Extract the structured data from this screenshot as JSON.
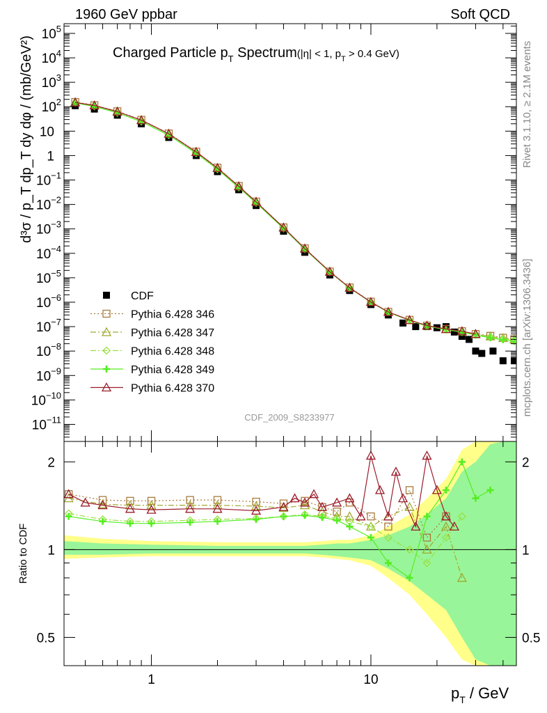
{
  "header": {
    "left": "1960 GeV ppbar",
    "right": "Soft QCD"
  },
  "side_labels": {
    "rivet": "Rivet 3.1.10, ≥ 2.1M events",
    "mcplots": "mcplots.cern.ch [arXiv:1306.3436]"
  },
  "watermark": "CDF_2009_S8233977",
  "chart_data": [
    {
      "type": "scatter",
      "panel": "main",
      "title": "Charged Particle p_T Spectrum (|η| < 1, p_T > 0.4 GeV)",
      "title_parts": {
        "main": "Charged Particle p",
        "sub": "T",
        "after": " Spectrum",
        "cut": "(|η| < 1, p",
        "cut_sub": "T",
        "cut_after": " > 0.4 GeV)"
      },
      "ylabel": "d³σ / p_T dp_T dy dφ / (mb/GeV²)",
      "x_scale": "log",
      "y_scale": "log",
      "xlim": [
        0.4,
        46
      ],
      "ylim": [
        2e-12,
        250000.0
      ],
      "y_ticks": [
        {
          "v": 100000.0,
          "b": "10",
          "e": "5"
        },
        {
          "v": 10000.0,
          "b": "10",
          "e": "4"
        },
        {
          "v": 1000.0,
          "b": "10",
          "e": "3"
        },
        {
          "v": 100.0,
          "b": "10",
          "e": "2"
        },
        {
          "v": 10,
          "b": "10",
          "e": ""
        },
        {
          "v": 1,
          "b": "1",
          "e": ""
        },
        {
          "v": 0.1,
          "b": "10",
          "e": "−1"
        },
        {
          "v": 0.01,
          "b": "10",
          "e": "−2"
        },
        {
          "v": 0.001,
          "b": "10",
          "e": "−3"
        },
        {
          "v": 0.0001,
          "b": "10",
          "e": "−4"
        },
        {
          "v": 1e-05,
          "b": "10",
          "e": "−5"
        },
        {
          "v": 1e-06,
          "b": "10",
          "e": "−6"
        },
        {
          "v": 1e-07,
          "b": "10",
          "e": "−7"
        },
        {
          "v": 1e-08,
          "b": "10",
          "e": "−8"
        },
        {
          "v": 1e-09,
          "b": "10",
          "e": "−9"
        },
        {
          "v": 1e-10,
          "b": "10",
          "e": "−10"
        },
        {
          "v": 1e-11,
          "b": "10",
          "e": "−11"
        }
      ],
      "legend_position": "lower-left",
      "series": [
        {
          "name": "CDF",
          "color": "#000000",
          "marker": "square",
          "style": "none",
          "x": [
            0.45,
            0.55,
            0.7,
            0.9,
            1.2,
            1.6,
            2.0,
            2.5,
            3.0,
            4.0,
            5.0,
            6.5,
            8.0,
            10.0,
            12.0,
            14.0,
            16.0,
            18.0,
            20.0,
            22.0,
            24.0,
            26.0,
            28.0,
            30.0,
            32.0,
            36.0,
            40.0,
            45.0
          ],
          "y": [
            110,
            80,
            45,
            20,
            5.5,
            1.0,
            0.22,
            0.04,
            0.009,
            0.0008,
            0.00011,
            1.3e-05,
            3e-06,
            8e-07,
            3e-07,
            1.4e-07,
            1e-07,
            1e-07,
            9e-08,
            1e-07,
            6e-08,
            4e-08,
            3e-08,
            1e-08,
            8e-09,
            1e-08,
            4e-09,
            4e-09
          ]
        },
        {
          "name": "Pythia 6.428 346",
          "color": "#a87a3c",
          "marker": "open-square",
          "style": "dotted",
          "x": [
            0.45,
            0.55,
            0.7,
            0.9,
            1.2,
            1.6,
            2.0,
            2.5,
            3.0,
            4.0,
            5.0,
            6.5,
            8.0,
            10.0,
            12.0,
            15.0,
            18.0,
            22.0,
            26.0,
            30.0,
            35.0,
            40.0,
            45.0
          ],
          "y": [
            155,
            115,
            65,
            29,
            8.0,
            1.45,
            0.32,
            0.057,
            0.0131,
            0.00115,
            0.00016,
            1.8e-05,
            4e-06,
            1.05e-06,
            4e-07,
            1.9e-07,
            1.1e-07,
            8e-08,
            6.5e-08,
            5e-08,
            4.2e-08,
            3.5e-08,
            3e-08
          ]
        },
        {
          "name": "Pythia 6.428 347",
          "color": "#a0a830",
          "marker": "open-triangle",
          "style": "dashdot",
          "x": [
            0.45,
            0.55,
            0.7,
            0.9,
            1.2,
            1.6,
            2.0,
            2.5,
            3.0,
            4.0,
            5.0,
            6.5,
            8.0,
            10.0,
            12.0,
            15.0,
            18.0,
            22.0,
            26.0,
            30.0,
            35.0,
            40.0,
            45.0
          ],
          "y": [
            152,
            113,
            64,
            28.5,
            7.9,
            1.43,
            0.315,
            0.056,
            0.013,
            0.00114,
            0.000158,
            1.78e-05,
            3.9e-06,
            1.02e-06,
            4e-07,
            1.85e-07,
            1.08e-07,
            7.8e-08,
            6.3e-08,
            4.8e-08,
            4e-08,
            3.4e-08,
            3e-08
          ]
        },
        {
          "name": "Pythia 6.428 348",
          "color": "#99e040",
          "marker": "open-diamond",
          "style": "dashdot",
          "x": [
            0.45,
            0.55,
            0.7,
            0.9,
            1.2,
            1.6,
            2.0,
            2.5,
            3.0,
            4.0,
            5.0,
            6.5,
            8.0,
            10.0,
            12.0,
            15.0,
            18.0,
            22.0,
            26.0,
            30.0,
            35.0,
            40.0,
            45.0
          ],
          "y": [
            145,
            104,
            57,
            25,
            6.9,
            1.26,
            0.28,
            0.05,
            0.0118,
            0.00105,
            0.000148,
            1.7e-05,
            3.8e-06,
            1e-06,
            3.9e-07,
            1.8e-07,
            1.05e-07,
            7.5e-08,
            6e-08,
            4.7e-08,
            3.8e-08,
            3.2e-08,
            2.8e-08
          ]
        },
        {
          "name": "Pythia 6.428 349",
          "color": "#55ee22",
          "marker": "plus-cross",
          "style": "solid",
          "x": [
            0.45,
            0.55,
            0.7,
            0.9,
            1.2,
            1.6,
            2.0,
            2.5,
            3.0,
            4.0,
            5.0,
            6.5,
            8.0,
            10.0,
            12.0,
            15.0,
            18.0,
            22.0,
            26.0,
            30.0,
            35.0,
            40.0,
            45.0
          ],
          "y": [
            143,
            102,
            56,
            24.5,
            6.8,
            1.24,
            0.275,
            0.049,
            0.0116,
            0.00104,
            0.000147,
            1.7e-05,
            3.8e-06,
            1e-06,
            3.9e-07,
            1.8e-07,
            1.05e-07,
            7.5e-08,
            6e-08,
            4.5e-08,
            3.5e-08,
            2.9e-08,
            2.5e-08
          ]
        },
        {
          "name": "Pythia 6.428 370",
          "color": "#9b1b2a",
          "marker": "open-triangle",
          "style": "solid",
          "x": [
            0.45,
            0.55,
            0.7,
            0.9,
            1.2,
            1.6,
            2.0,
            2.5,
            3.0,
            4.0,
            5.0,
            6.5,
            8.0,
            10.0,
            12.0,
            15.0,
            18.0,
            22.0,
            26.0,
            30.0
          ],
          "y": [
            150,
            112,
            63,
            28,
            7.8,
            1.4,
            0.31,
            0.055,
            0.0128,
            0.00113,
            0.000156,
            1.76e-05,
            3.9e-06,
            1.02e-06,
            4e-07,
            1.85e-07,
            1.1e-07,
            8e-08,
            6.5e-08,
            5e-08
          ]
        }
      ]
    },
    {
      "type": "line",
      "panel": "ratio",
      "ylabel": "Ratio to CDF",
      "xlabel": "p_T / GeV",
      "xlabel_parts": {
        "main": "p",
        "sub": "T",
        "after": " / GeV"
      },
      "x_scale": "log",
      "y_scale": "log",
      "xlim": [
        0.4,
        46
      ],
      "ylim": [
        0.4,
        2.35
      ],
      "x_ticks": [
        {
          "v": 1,
          "label": "1"
        },
        {
          "v": 10,
          "label": "10"
        }
      ],
      "y_ticks": [
        {
          "v": 2,
          "label": "2"
        },
        {
          "v": 1,
          "label": "1"
        },
        {
          "v": 0.5,
          "label": "0.5"
        }
      ],
      "reference_line": 1,
      "uncertainty_bands": [
        {
          "name": "yellow",
          "color": "#ffff8a",
          "x": [
            0.4,
            0.6,
            1.0,
            2.0,
            3.0,
            4.0,
            5.0,
            6.0,
            7.0,
            8.0,
            10.0,
            12.0,
            15.0,
            18.0,
            22.0,
            26.0,
            30.0,
            35.0,
            40.0,
            46.0
          ],
          "lo": [
            0.93,
            0.94,
            0.95,
            0.95,
            0.95,
            0.95,
            0.95,
            0.94,
            0.93,
            0.92,
            0.88,
            0.8,
            0.7,
            0.6,
            0.5,
            0.42,
            0.4,
            0.4,
            0.4,
            0.4
          ],
          "hi": [
            1.12,
            1.09,
            1.07,
            1.06,
            1.06,
            1.06,
            1.06,
            1.07,
            1.08,
            1.08,
            1.12,
            1.2,
            1.32,
            1.5,
            1.75,
            2.2,
            2.35,
            2.35,
            2.35,
            2.35
          ]
        },
        {
          "name": "green",
          "color": "#99f599",
          "x": [
            0.4,
            0.6,
            1.0,
            2.0,
            3.0,
            4.0,
            5.0,
            6.0,
            7.0,
            8.0,
            10.0,
            12.0,
            15.0,
            18.0,
            22.0,
            26.0,
            30.0,
            35.0,
            40.0,
            46.0
          ],
          "lo": [
            0.96,
            0.96,
            0.97,
            0.97,
            0.97,
            0.97,
            0.97,
            0.96,
            0.95,
            0.94,
            0.92,
            0.86,
            0.78,
            0.7,
            0.62,
            0.5,
            0.42,
            0.4,
            0.4,
            0.4
          ],
          "hi": [
            1.07,
            1.05,
            1.04,
            1.03,
            1.03,
            1.03,
            1.03,
            1.04,
            1.05,
            1.05,
            1.08,
            1.12,
            1.2,
            1.32,
            1.5,
            1.85,
            2.0,
            2.3,
            2.35,
            2.35
          ]
        }
      ],
      "series": [
        {
          "name": "Pythia 6.428 346",
          "color": "#a87a3c",
          "x": [
            0.42,
            0.6,
            0.8,
            1.0,
            1.5,
            2.0,
            3.0,
            4.0,
            5.0,
            6.0,
            7.0,
            8.0,
            10.0,
            12.0,
            15.0,
            18.0,
            22.0
          ],
          "y": [
            1.55,
            1.48,
            1.47,
            1.47,
            1.48,
            1.48,
            1.46,
            1.44,
            1.47,
            1.4,
            1.35,
            1.45,
            1.3,
            1.2,
            1.6,
            1.1,
            1.3
          ]
        },
        {
          "name": "Pythia 6.428 347",
          "color": "#a0a830",
          "x": [
            0.42,
            0.6,
            0.8,
            1.0,
            1.5,
            2.0,
            3.0,
            4.0,
            5.0,
            6.0,
            7.0,
            8.0,
            10.0,
            12.0,
            15.0,
            18.0,
            22.0,
            26.0
          ],
          "y": [
            1.5,
            1.43,
            1.42,
            1.42,
            1.42,
            1.42,
            1.41,
            1.39,
            1.42,
            1.35,
            1.3,
            1.3,
            1.2,
            1.3,
            1.4,
            1.0,
            1.2,
            0.8
          ]
        },
        {
          "name": "Pythia 6.428 348",
          "color": "#99e040",
          "x": [
            0.42,
            0.6,
            0.8,
            1.0,
            1.5,
            2.0,
            3.0,
            4.0,
            5.0,
            6.0,
            7.0,
            8.0,
            10.0,
            12.0,
            15.0,
            18.0,
            22.0,
            26.0
          ],
          "y": [
            1.33,
            1.27,
            1.25,
            1.25,
            1.26,
            1.27,
            1.28,
            1.3,
            1.32,
            1.3,
            1.28,
            1.25,
            1.2,
            1.1,
            1.0,
            0.9,
            1.1,
            1.3
          ]
        },
        {
          "name": "Pythia 6.428 349",
          "color": "#55ee22",
          "x": [
            0.42,
            0.6,
            0.8,
            1.0,
            1.5,
            2.0,
            3.0,
            4.0,
            5.0,
            6.0,
            7.0,
            8.0,
            10.0,
            12.0,
            15.0,
            18.0,
            22.0,
            26.0,
            30.0,
            35.0
          ],
          "y": [
            1.3,
            1.25,
            1.23,
            1.23,
            1.24,
            1.25,
            1.27,
            1.3,
            1.31,
            1.29,
            1.26,
            1.2,
            1.1,
            0.9,
            0.8,
            1.3,
            1.6,
            2.0,
            1.5,
            1.6
          ]
        },
        {
          "name": "Pythia 6.428 370",
          "color": "#9b1b2a",
          "x": [
            0.42,
            0.5,
            0.6,
            0.8,
            1.0,
            1.5,
            2.0,
            3.0,
            4.0,
            4.5,
            5.0,
            5.5,
            6.0,
            7.0,
            8.0,
            9.0,
            10.0,
            11.0,
            12.0,
            13.0,
            14.0,
            16.0,
            18.0,
            20.0,
            22.0,
            24.0
          ],
          "y": [
            1.55,
            1.45,
            1.42,
            1.38,
            1.37,
            1.38,
            1.38,
            1.36,
            1.4,
            1.5,
            1.45,
            1.55,
            1.4,
            1.45,
            1.5,
            1.3,
            2.1,
            1.6,
            1.3,
            1.85,
            1.5,
            1.2,
            2.1,
            1.6,
            1.3,
            1.2
          ]
        }
      ]
    }
  ]
}
